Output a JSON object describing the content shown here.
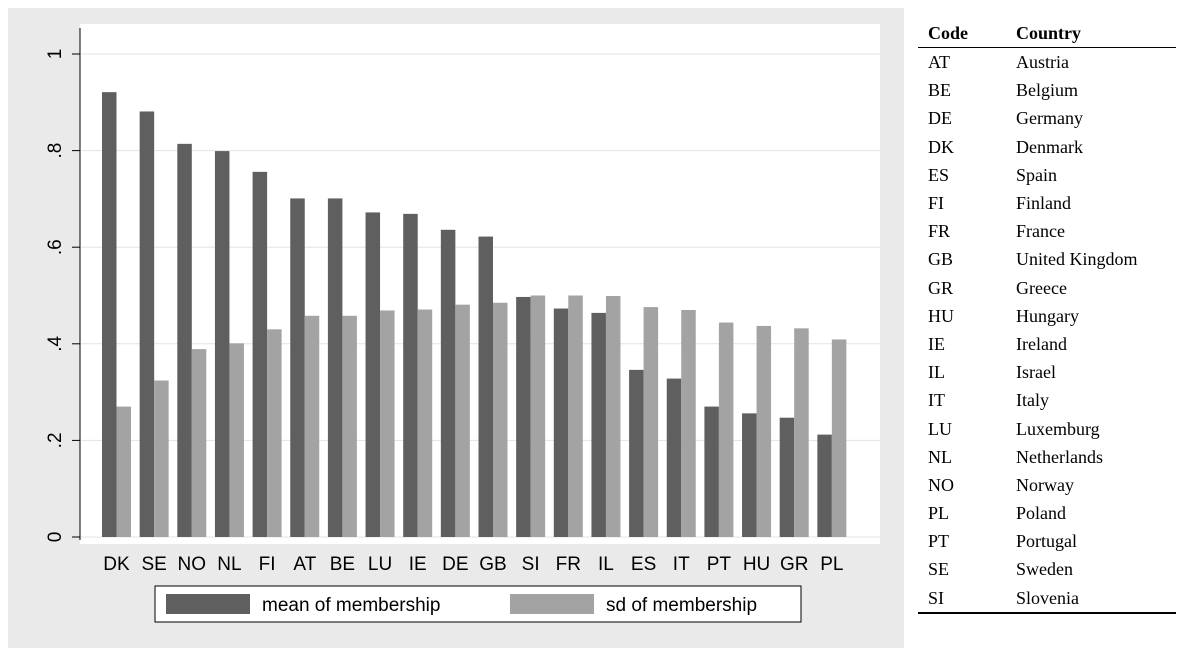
{
  "chart_data": {
    "type": "bar",
    "categories": [
      "DK",
      "SE",
      "NO",
      "NL",
      "FI",
      "AT",
      "BE",
      "LU",
      "IE",
      "DE",
      "GB",
      "SI",
      "FR",
      "IL",
      "ES",
      "IT",
      "PT",
      "HU",
      "GR",
      "PL"
    ],
    "series": [
      {
        "name": "mean of membership",
        "color": "#5f5f5f",
        "values": [
          0.921,
          0.881,
          0.814,
          0.799,
          0.756,
          0.701,
          0.701,
          0.672,
          0.669,
          0.636,
          0.622,
          0.497,
          0.473,
          0.464,
          0.346,
          0.328,
          0.27,
          0.256,
          0.247,
          0.212
        ]
      },
      {
        "name": "sd of membership",
        "color": "#a3a3a3",
        "values": [
          0.27,
          0.324,
          0.389,
          0.401,
          0.43,
          0.458,
          0.458,
          0.469,
          0.471,
          0.481,
          0.485,
          0.5,
          0.5,
          0.499,
          0.476,
          0.47,
          0.444,
          0.437,
          0.432,
          0.409
        ]
      }
    ],
    "ylim": [
      0,
      1.05
    ],
    "yticks": [
      0,
      0.2,
      0.4,
      0.6,
      0.8,
      1
    ],
    "ytick_labels": [
      "0",
      ".2",
      ".4",
      ".6",
      ".8",
      "1"
    ],
    "grid": true,
    "legend": "bottom",
    "background": "#eaeaea",
    "plot_background": "#ffffff",
    "title": "",
    "xlabel": "",
    "ylabel": ""
  },
  "code_table": {
    "headers": [
      "Code",
      "Country"
    ],
    "rows": [
      [
        "AT",
        "Austria"
      ],
      [
        "BE",
        "Belgium"
      ],
      [
        "DE",
        "Germany"
      ],
      [
        "DK",
        "Denmark"
      ],
      [
        "ES",
        "Spain"
      ],
      [
        "FI",
        "Finland"
      ],
      [
        "FR",
        "France"
      ],
      [
        "GB",
        "United Kingdom"
      ],
      [
        "GR",
        "Greece"
      ],
      [
        "HU",
        "Hungary"
      ],
      [
        "IE",
        "Ireland"
      ],
      [
        "IL",
        "Israel"
      ],
      [
        "IT",
        "Italy"
      ],
      [
        "LU",
        "Luxemburg"
      ],
      [
        "NL",
        "Netherlands"
      ],
      [
        "NO",
        "Norway"
      ],
      [
        "PL",
        "Poland"
      ],
      [
        "PT",
        "Portugal"
      ],
      [
        "SE",
        "Sweden"
      ],
      [
        "SI",
        "Slovenia"
      ]
    ]
  }
}
